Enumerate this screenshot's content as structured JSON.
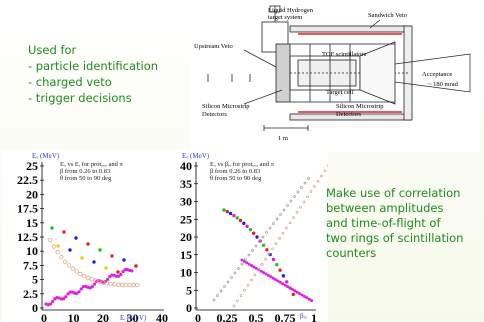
{
  "bullets": {
    "heading": "Used for",
    "items": [
      "- particle identification",
      "- charged veto",
      "- trigger decisions"
    ]
  },
  "detector": {
    "labels": {
      "lh2": "Liquid Hydrogen",
      "target_system": "target system",
      "sandwich_veto": "Sandwich Veto",
      "upstream_veto": "Upstream Veto",
      "tof": "TOF scintillators",
      "acceptance": "Acceptance",
      "acceptance_value": "~ 180 mrad",
      "target_cell": "Target cell",
      "silicon_left_1": "Silicon Microstrip",
      "silicon_left_2": "Detectors",
      "silicon_right_1": "Silicon Microstrip",
      "silicon_right_2": "Detectors",
      "scale": "1 m"
    }
  },
  "plot_left": {
    "ylabel": "Eₒ (MeV)",
    "xlabel": "Eᵢ (MeV)",
    "annotation": [
      "Eₒ vs Eᵢ for protₒₒₒ and π",
      "β from 0.26 to 0.83",
      "θ from 50 to 90 deg"
    ],
    "yticks": [
      "25",
      "22.5",
      "20",
      "17.5",
      "15",
      "12.5",
      "10",
      "7.5",
      "5",
      "2.5",
      "0"
    ],
    "xticks": [
      "0",
      "10",
      "20",
      "30",
      "40"
    ]
  },
  "plot_right": {
    "ylabel": "Eₒ (MeV)",
    "xlabel": "βᵢₒ",
    "annotation": [
      "Eₒ vs βᵢₒ for protₒₒₒ and π",
      "β from 0.26 to 0.83",
      "θ from 50 to 90 deg"
    ],
    "yticks": [
      "40",
      "35",
      "30",
      "25",
      "20",
      "15",
      "10",
      "5",
      "0"
    ],
    "xticks": [
      "0",
      "0.25",
      "0.5",
      "0.75",
      "1"
    ]
  },
  "right_text": {
    "lines": [
      "Make use of correlation",
      "between amplitudes",
      "and time-of-flight of",
      "two rings of scintillation",
      "counters"
    ]
  },
  "colors": {
    "text_green": "#1f8a1f",
    "magenta": "#e020e0",
    "red": "#e02020",
    "blue": "#2020e0",
    "yellow": "#e8d000",
    "green": "#20c020",
    "orange_open": "#d8a080",
    "grey": "#9a9a9a"
  }
}
